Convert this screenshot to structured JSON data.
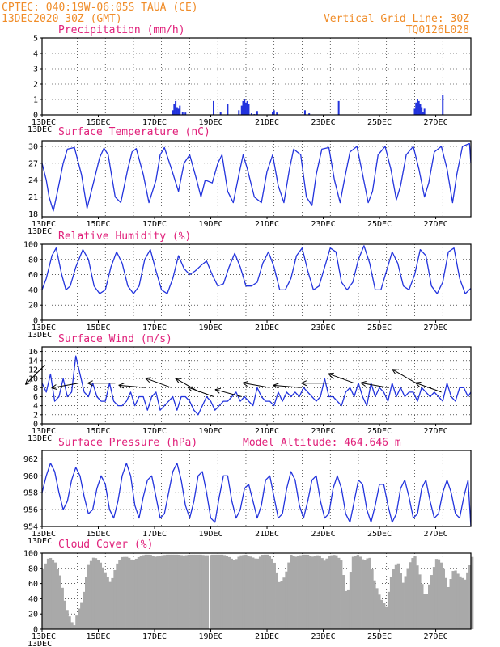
{
  "header": {
    "line1_left": "CPTEC:   040:19W-06:05S  TAUA (CE)",
    "line2_left": "13DEC2020 30Z (GMT)",
    "line2_right": "Vertical Grid Line: 30Z",
    "line3_right": "TQ0126L028"
  },
  "colors": {
    "line": "#2233dd",
    "cloud": "#a9a9a9",
    "header": "#f08c28",
    "title": "#e0207a",
    "arrow": "#000000"
  },
  "x_tick_labels": [
    "13DEC",
    "15DEC",
    "17DEC",
    "19DEC",
    "21DEC",
    "23DEC",
    "25DEC",
    "27DEC"
  ],
  "chart_data": [
    {
      "type": "bar",
      "title": "Precipitation (mm/h)",
      "ylim": [
        0,
        5
      ],
      "yticks": [
        0,
        1,
        2,
        3,
        4,
        5
      ],
      "x_unit": "days since 13DEC 00Z",
      "xlim": [
        0,
        15.25
      ],
      "x": [
        4.65,
        4.7,
        4.75,
        4.8,
        4.85,
        4.9,
        5.0,
        5.1,
        6.1,
        6.35,
        6.6,
        7.0,
        7.1,
        7.15,
        7.2,
        7.25,
        7.3,
        7.35,
        7.45,
        7.55,
        7.65,
        8.2,
        8.25,
        8.35,
        9.35,
        9.5,
        10.55,
        13.25,
        13.3,
        13.35,
        13.4,
        13.45,
        13.5,
        13.55,
        13.6,
        14.25
      ],
      "values": [
        0.3,
        0.7,
        0.9,
        0.5,
        0.4,
        0.6,
        0.2,
        0.15,
        0.9,
        0.2,
        0.7,
        0.3,
        0.6,
        0.9,
        1.0,
        0.8,
        0.9,
        0.7,
        0.1,
        0.05,
        0.25,
        0.2,
        0.3,
        0.15,
        0.3,
        0.1,
        0.9,
        0.4,
        0.8,
        1.0,
        0.9,
        0.7,
        0.5,
        0.2,
        0.4,
        1.3
      ]
    },
    {
      "type": "line",
      "title": "Surface Temperature (nC)",
      "ylim": [
        17.5,
        31
      ],
      "yticks": [
        18,
        21,
        24,
        27,
        30
      ],
      "x_unit": "days since 13DEC 00Z",
      "xlim": [
        0,
        15.25
      ],
      "x": [
        0,
        0.15,
        0.25,
        0.4,
        0.55,
        0.75,
        0.9,
        1.15,
        1.4,
        1.6,
        1.8,
        2.05,
        2.2,
        2.35,
        2.6,
        2.8,
        3.05,
        3.2,
        3.35,
        3.6,
        3.8,
        4.05,
        4.2,
        4.35,
        4.6,
        4.85,
        5.05,
        5.25,
        5.5,
        5.65,
        5.8,
        6.05,
        6.25,
        6.4,
        6.6,
        6.8,
        7.0,
        7.15,
        7.3,
        7.55,
        7.8,
        8.0,
        8.2,
        8.4,
        8.6,
        8.8,
        8.95,
        9.2,
        9.4,
        9.6,
        9.75,
        9.95,
        10.2,
        10.4,
        10.6,
        10.75,
        10.95,
        11.2,
        11.4,
        11.6,
        11.75,
        11.95,
        12.2,
        12.4,
        12.6,
        12.75,
        12.95,
        13.2,
        13.4,
        13.6,
        13.75,
        13.95,
        14.2,
        14.4,
        14.6,
        14.75,
        14.95,
        15.2,
        15.25
      ],
      "values": [
        27,
        24,
        21,
        18.5,
        22,
        27,
        29.5,
        29.8,
        25,
        19,
        23,
        28,
        29.7,
        28.5,
        21,
        20,
        26,
        29,
        29.6,
        25,
        20,
        24,
        28.5,
        29.8,
        26,
        22,
        27,
        28.5,
        24,
        21,
        24,
        23.5,
        27,
        28.5,
        22,
        20,
        25,
        28.5,
        26,
        21,
        20,
        25.5,
        28.5,
        23,
        20,
        26,
        29.5,
        28.5,
        21,
        19.5,
        25,
        29.5,
        29.8,
        24,
        20,
        24,
        29,
        30,
        25,
        20,
        22,
        28.5,
        30,
        26,
        20.5,
        23,
        28.5,
        30,
        26,
        21,
        23.5,
        29,
        30,
        26,
        20,
        25,
        30,
        30.5,
        27
      ]
    },
    {
      "type": "line",
      "title": "Relative Humidity (%)",
      "ylim": [
        0,
        100
      ],
      "yticks": [
        0,
        20,
        40,
        60,
        80,
        100
      ],
      "x_unit": "days since 13DEC 00Z",
      "xlim": [
        0,
        15.25
      ],
      "x": [
        0,
        0.15,
        0.35,
        0.5,
        0.7,
        0.85,
        1.0,
        1.2,
        1.45,
        1.65,
        1.85,
        2.05,
        2.25,
        2.45,
        2.65,
        2.85,
        3.05,
        3.25,
        3.45,
        3.65,
        3.85,
        4.05,
        4.25,
        4.45,
        4.65,
        4.85,
        5.05,
        5.25,
        5.45,
        5.65,
        5.85,
        6.05,
        6.25,
        6.45,
        6.65,
        6.85,
        7.05,
        7.25,
        7.45,
        7.65,
        7.85,
        8.05,
        8.25,
        8.45,
        8.65,
        8.85,
        9.05,
        9.25,
        9.45,
        9.65,
        9.85,
        10.05,
        10.25,
        10.45,
        10.65,
        10.85,
        11.05,
        11.25,
        11.45,
        11.65,
        11.85,
        12.05,
        12.25,
        12.45,
        12.65,
        12.85,
        13.05,
        13.25,
        13.45,
        13.65,
        13.85,
        14.05,
        14.25,
        14.45,
        14.65,
        14.85,
        15.05,
        15.25
      ],
      "values": [
        40,
        55,
        85,
        95,
        60,
        40,
        45,
        70,
        93,
        80,
        45,
        35,
        40,
        70,
        90,
        75,
        45,
        35,
        45,
        80,
        93,
        65,
        40,
        35,
        55,
        85,
        68,
        60,
        65,
        72,
        78,
        60,
        45,
        48,
        70,
        88,
        70,
        45,
        45,
        50,
        75,
        90,
        70,
        40,
        40,
        55,
        85,
        95,
        65,
        40,
        45,
        70,
        95,
        90,
        50,
        40,
        50,
        80,
        98,
        75,
        40,
        40,
        65,
        90,
        75,
        45,
        40,
        60,
        93,
        85,
        45,
        35,
        50,
        90,
        95,
        55,
        35,
        42
      ]
    },
    {
      "type": "line",
      "title": "Surface Wind (m/s)",
      "ylim": [
        0,
        17
      ],
      "yticks": [
        0,
        2,
        4,
        6,
        8,
        10,
        12,
        14,
        16
      ],
      "x_unit": "days since 13DEC 00Z",
      "xlim": [
        0,
        15.25
      ],
      "x": [
        0,
        0.15,
        0.3,
        0.45,
        0.6,
        0.75,
        0.9,
        1.05,
        1.2,
        1.35,
        1.5,
        1.65,
        1.8,
        1.95,
        2.1,
        2.25,
        2.4,
        2.55,
        2.7,
        2.85,
        3.0,
        3.15,
        3.3,
        3.45,
        3.6,
        3.75,
        3.9,
        4.05,
        4.2,
        4.35,
        4.5,
        4.65,
        4.8,
        4.95,
        5.1,
        5.25,
        5.4,
        5.55,
        5.7,
        5.85,
        6.0,
        6.15,
        6.3,
        6.45,
        6.6,
        6.75,
        6.9,
        7.05,
        7.2,
        7.35,
        7.5,
        7.65,
        7.8,
        7.95,
        8.1,
        8.25,
        8.4,
        8.55,
        8.7,
        8.85,
        9.0,
        9.15,
        9.3,
        9.45,
        9.6,
        9.75,
        9.9,
        10.05,
        10.2,
        10.35,
        10.5,
        10.65,
        10.8,
        10.95,
        11.1,
        11.25,
        11.4,
        11.55,
        11.7,
        11.85,
        12.0,
        12.15,
        12.3,
        12.45,
        12.6,
        12.75,
        12.9,
        13.05,
        13.2,
        13.35,
        13.5,
        13.65,
        13.8,
        13.95,
        14.1,
        14.25,
        14.4,
        14.55,
        14.7,
        14.85,
        15.0,
        15.15,
        15.25
      ],
      "values": [
        9,
        7,
        11,
        5,
        6,
        10,
        6,
        7,
        15,
        11,
        7,
        6,
        9,
        6,
        5,
        5,
        9,
        5,
        4,
        4,
        5,
        7,
        4,
        6,
        6,
        3,
        6,
        7,
        3,
        4,
        5,
        6,
        3,
        6,
        6,
        5,
        3,
        2,
        4,
        6,
        5,
        3,
        4,
        5,
        5,
        6,
        7,
        5,
        6,
        5,
        4,
        8,
        6,
        5,
        5,
        4,
        7,
        5,
        7,
        6,
        7,
        6,
        8,
        7,
        6,
        5,
        6,
        10,
        6,
        6,
        5,
        4,
        7,
        8,
        6,
        9,
        6,
        4,
        9,
        6,
        8,
        7,
        5,
        9,
        6,
        8,
        6,
        7,
        7,
        5,
        8,
        7,
        6,
        7,
        6,
        5,
        9,
        6,
        5,
        8,
        8,
        6,
        7
      ]
    },
    {
      "type": "line",
      "title": "Surface Pressure (hPa)",
      "annotation": "Model Altitude: 464.646  m",
      "ylim": [
        954,
        963
      ],
      "yticks": [
        954,
        956,
        958,
        960,
        962
      ],
      "x_unit": "days since 13DEC 00Z",
      "xlim": [
        0,
        15.25
      ],
      "x": [
        0,
        0.15,
        0.3,
        0.45,
        0.6,
        0.75,
        0.9,
        1.05,
        1.2,
        1.35,
        1.5,
        1.65,
        1.8,
        1.95,
        2.1,
        2.25,
        2.4,
        2.55,
        2.7,
        2.85,
        3.0,
        3.15,
        3.3,
        3.45,
        3.6,
        3.75,
        3.9,
        4.05,
        4.2,
        4.35,
        4.5,
        4.65,
        4.8,
        4.95,
        5.1,
        5.25,
        5.4,
        5.55,
        5.7,
        5.85,
        6.0,
        6.15,
        6.3,
        6.45,
        6.6,
        6.75,
        6.9,
        7.05,
        7.2,
        7.35,
        7.5,
        7.65,
        7.8,
        7.95,
        8.1,
        8.25,
        8.4,
        8.55,
        8.7,
        8.85,
        9.0,
        9.15,
        9.3,
        9.45,
        9.6,
        9.75,
        9.9,
        10.05,
        10.2,
        10.35,
        10.5,
        10.65,
        10.8,
        10.95,
        11.1,
        11.25,
        11.4,
        11.55,
        11.7,
        11.85,
        12.0,
        12.15,
        12.3,
        12.45,
        12.6,
        12.75,
        12.9,
        13.05,
        13.2,
        13.35,
        13.5,
        13.65,
        13.8,
        13.95,
        14.1,
        14.25,
        14.4,
        14.55,
        14.7,
        14.85,
        15.0,
        15.15,
        15.25
      ],
      "values": [
        958,
        960,
        961.5,
        960.5,
        958,
        956,
        957,
        959.5,
        961,
        960,
        957.5,
        955.5,
        956,
        958.5,
        960,
        959,
        956,
        955,
        957,
        960,
        961.5,
        960,
        956.5,
        955,
        957.5,
        959.5,
        960,
        957.5,
        955,
        955.5,
        958,
        960.5,
        961.5,
        959.5,
        956.5,
        955,
        957,
        960,
        960.5,
        958,
        955,
        954.5,
        957.5,
        960,
        960,
        957,
        955,
        956,
        958.5,
        959,
        957,
        955,
        956.5,
        959.5,
        960,
        957.5,
        955,
        955.5,
        958.5,
        960.5,
        959.5,
        956.5,
        955,
        957,
        959.5,
        960,
        957,
        955,
        955.5,
        958.5,
        960,
        958.5,
        955.5,
        954.5,
        957,
        959.5,
        959,
        956,
        954.5,
        956.5,
        959,
        959,
        956.5,
        954.5,
        955.5,
        958.5,
        959.5,
        957.5,
        955,
        955.5,
        958.5,
        959.5,
        957,
        955,
        955.5,
        958,
        959.5,
        958,
        955.5,
        955,
        957.5,
        959.5,
        954
      ]
    },
    {
      "type": "area",
      "title": "Cloud Cover (%)",
      "ylim": [
        0,
        100
      ],
      "yticks": [
        0,
        20,
        40,
        60,
        80,
        100
      ],
      "x_unit": "days since 13DEC 00Z",
      "xlim": [
        0,
        15.25
      ],
      "x": [
        0,
        0.2,
        0.4,
        0.6,
        0.8,
        1.0,
        1.1,
        1.2,
        1.4,
        1.6,
        1.8,
        2.0,
        2.2,
        2.4,
        2.6,
        2.8,
        3.0,
        3.2,
        3.4,
        3.6,
        3.8,
        4.0,
        4.2,
        4.4,
        4.6,
        4.8,
        5.0,
        5.2,
        5.4,
        5.6,
        5.8,
        6.0,
        6.2,
        6.4,
        6.6,
        6.8,
        7.0,
        7.2,
        7.4,
        7.6,
        7.8,
        8.0,
        8.2,
        8.4,
        8.6,
        8.8,
        9.0,
        9.2,
        9.4,
        9.6,
        9.8,
        10.0,
        10.2,
        10.4,
        10.6,
        10.8,
        11.0,
        11.2,
        11.4,
        11.6,
        11.8,
        12.0,
        12.2,
        12.4,
        12.6,
        12.8,
        13.0,
        13.2,
        13.4,
        13.6,
        13.8,
        14.0,
        14.2,
        14.4,
        14.6,
        14.8,
        15.0,
        15.25
      ],
      "values": [
        80,
        95,
        90,
        70,
        30,
        10,
        5,
        20,
        40,
        85,
        95,
        90,
        75,
        60,
        85,
        95,
        95,
        90,
        95,
        98,
        98,
        95,
        97,
        98,
        98,
        98,
        97,
        98,
        98,
        98,
        97,
        98,
        98,
        98,
        95,
        90,
        97,
        98,
        95,
        92,
        98,
        98,
        90,
        60,
        70,
        98,
        95,
        98,
        98,
        95,
        98,
        90,
        97,
        98,
        90,
        40,
        95,
        98,
        90,
        95,
        60,
        40,
        30,
        75,
        90,
        60,
        85,
        98,
        70,
        40,
        70,
        95,
        85,
        55,
        80,
        70,
        65,
        95
      ]
    }
  ],
  "panels": [
    {
      "title": "Precipitation (mm/h)",
      "bottom_label": "13DEC"
    },
    {
      "title": "Surface Temperature (nC)",
      "bottom_label": "13DEC"
    },
    {
      "title": "Relative Humidity (%)",
      "bottom_label": "13DEC"
    },
    {
      "title": "Surface Wind (m/s)",
      "bottom_label": "13DEC"
    },
    {
      "title": "Surface Pressure (hPa)",
      "bottom_label": "13DEC"
    },
    {
      "title": "Cloud Cover (%)",
      "bottom_label": "13DEC"
    }
  ],
  "pressure_annotation": "Model Altitude: 464.646  m",
  "wind_vectors": [
    {
      "x": 0.1,
      "speed": 13,
      "dir_deg": 135
    },
    {
      "x": 1.3,
      "speed": 9,
      "dir_deg": 170
    },
    {
      "x": 2.6,
      "speed": 9,
      "dir_deg": 180
    },
    {
      "x": 3.7,
      "speed": 8,
      "dir_deg": 185
    },
    {
      "x": 4.6,
      "speed": 8,
      "dir_deg": 200
    },
    {
      "x": 5.6,
      "speed": 7,
      "dir_deg": 210
    },
    {
      "x": 6.1,
      "speed": 6,
      "dir_deg": 200
    },
    {
      "x": 7.1,
      "speed": 6,
      "dir_deg": 195
    },
    {
      "x": 8.1,
      "speed": 8,
      "dir_deg": 190
    },
    {
      "x": 9.2,
      "speed": 8,
      "dir_deg": 185
    },
    {
      "x": 10.2,
      "speed": 9,
      "dir_deg": 180
    },
    {
      "x": 11.1,
      "speed": 9,
      "dir_deg": 200
    },
    {
      "x": 12.3,
      "speed": 8,
      "dir_deg": 190
    },
    {
      "x": 13.3,
      "speed": 9,
      "dir_deg": 210
    },
    {
      "x": 14.2,
      "speed": 7,
      "dir_deg": 200
    }
  ]
}
